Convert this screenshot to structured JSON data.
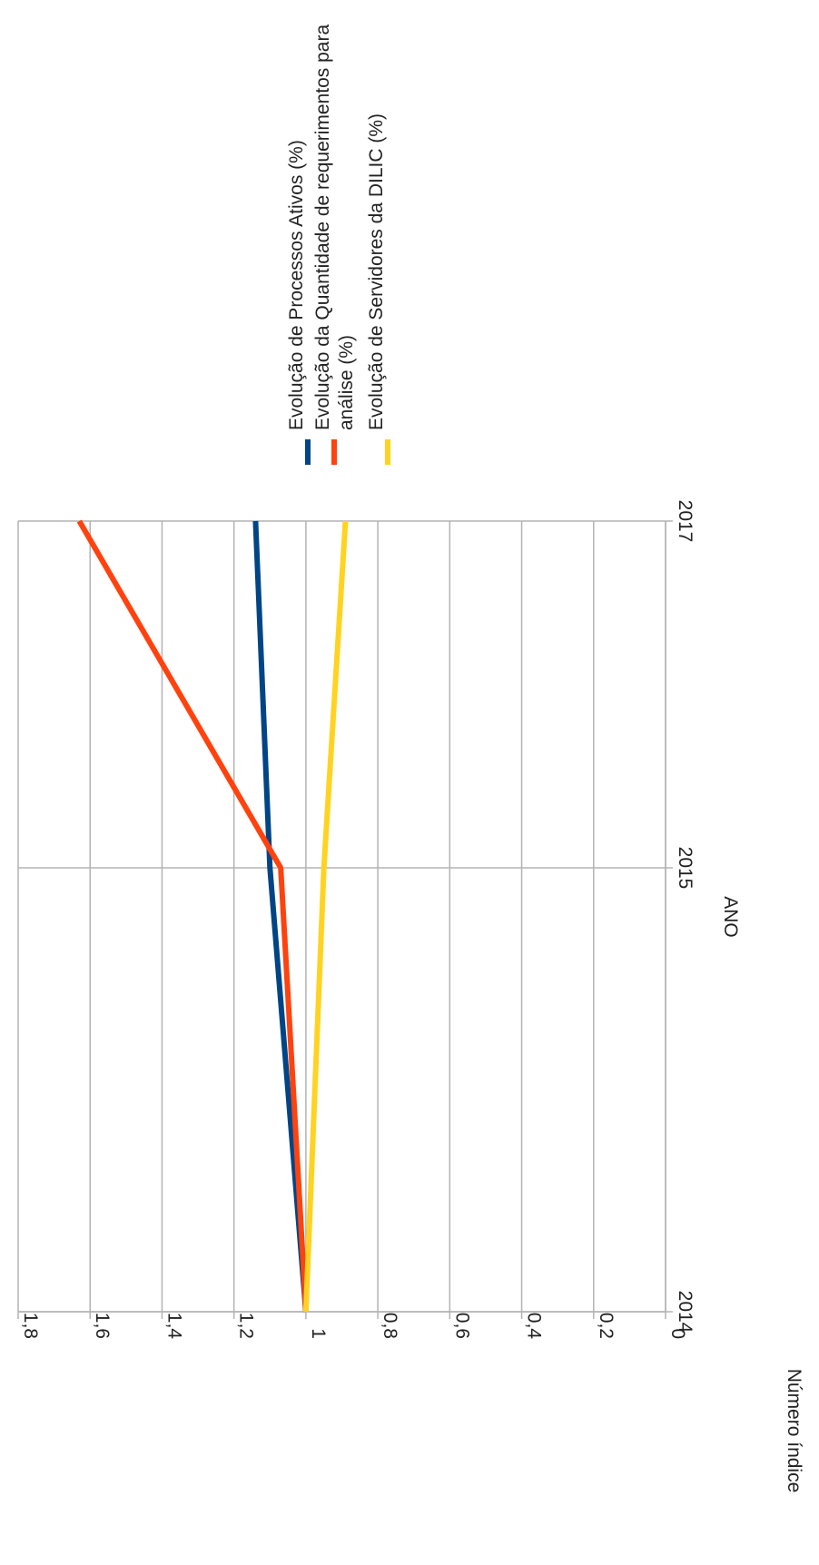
{
  "chart_data": {
    "type": "line",
    "orientation": "rotated-90-clockwise",
    "xlabel": "ANO",
    "ylabel": "Número índice",
    "categories": [
      "2014",
      "2015",
      "2017"
    ],
    "x_ticks": [
      "2014",
      "2015",
      "2017"
    ],
    "y_ticks": [
      "0",
      "0,2",
      "0,4",
      "0,6",
      "0,8",
      "1",
      "1,2",
      "1,4",
      "1,6",
      "1,8"
    ],
    "ylim": [
      0,
      1.8
    ],
    "grid": true,
    "legend_position": "right",
    "series": [
      {
        "name": "Evolução de Processos Ativos (%)",
        "color": "#004586",
        "values": [
          1.0,
          1.1,
          1.14
        ]
      },
      {
        "name": "Evolução da Quantidade de requerimentos para análise (%)",
        "name_lines": [
          "Evolução da Quantidade de requerimentos para",
          "análise (%)"
        ],
        "color": "#ff420e",
        "values": [
          1.0,
          1.07,
          1.63
        ]
      },
      {
        "name": "Evolução de Servidores da DILIC (%)",
        "color": "#ffd320",
        "values": [
          1.0,
          0.95,
          0.89
        ]
      }
    ]
  }
}
